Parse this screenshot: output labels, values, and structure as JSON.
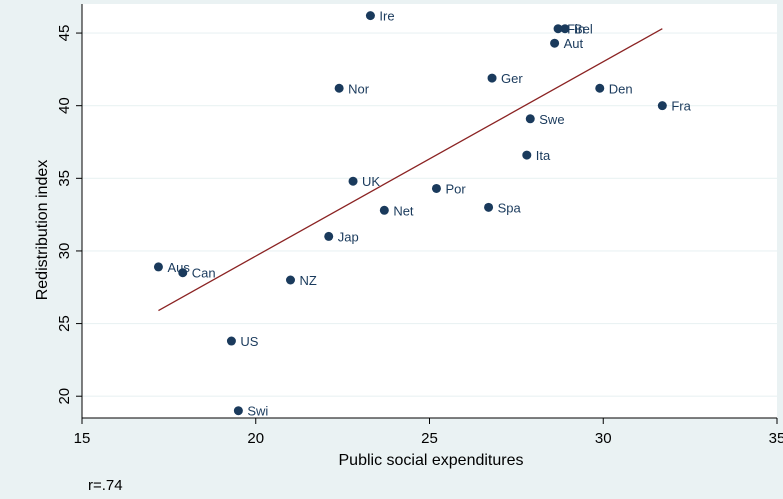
{
  "chart_data": {
    "type": "scatter",
    "title": "",
    "xlabel": "Public social expenditures",
    "ylabel": "Redistribution index",
    "xlim": [
      15,
      35
    ],
    "ylim": [
      18.5,
      47
    ],
    "x_ticks": [
      15,
      20,
      25,
      30,
      35
    ],
    "y_ticks": [
      20,
      25,
      30,
      35,
      40,
      45
    ],
    "grid": "horizontal",
    "legend": "none",
    "colors": {
      "marker": "#1a3a5c",
      "fit_line": "#8b2323",
      "plot_bg": "#ffffff",
      "page_bg": "#eaf2f3"
    },
    "points": [
      {
        "label": "Ire",
        "x": 23.3,
        "y": 46.2
      },
      {
        "label": "Fin",
        "x": 28.7,
        "y": 45.3
      },
      {
        "label": "Bel",
        "x": 28.9,
        "y": 45.3
      },
      {
        "label": "Aut",
        "x": 28.6,
        "y": 44.3
      },
      {
        "label": "Ger",
        "x": 26.8,
        "y": 41.9
      },
      {
        "label": "Nor",
        "x": 22.4,
        "y": 41.2
      },
      {
        "label": "Den",
        "x": 29.9,
        "y": 41.2
      },
      {
        "label": "Fra",
        "x": 31.7,
        "y": 40.0
      },
      {
        "label": "Swe",
        "x": 27.9,
        "y": 39.1
      },
      {
        "label": "Ita",
        "x": 27.8,
        "y": 36.6
      },
      {
        "label": "UK",
        "x": 22.8,
        "y": 34.8
      },
      {
        "label": "Por",
        "x": 25.2,
        "y": 34.3
      },
      {
        "label": "Spa",
        "x": 26.7,
        "y": 33.0
      },
      {
        "label": "Net",
        "x": 23.7,
        "y": 32.8
      },
      {
        "label": "Jap",
        "x": 22.1,
        "y": 31.0
      },
      {
        "label": "Aus",
        "x": 17.2,
        "y": 28.9
      },
      {
        "label": "Can",
        "x": 17.9,
        "y": 28.5
      },
      {
        "label": "NZ",
        "x": 21.0,
        "y": 28.0
      },
      {
        "label": "US",
        "x": 19.3,
        "y": 23.8
      },
      {
        "label": "Swi",
        "x": 19.5,
        "y": 19.0
      }
    ],
    "fit_line": {
      "x": [
        17.2,
        31.7
      ],
      "y": [
        25.9,
        45.3
      ]
    },
    "annotation": "r=.74"
  }
}
